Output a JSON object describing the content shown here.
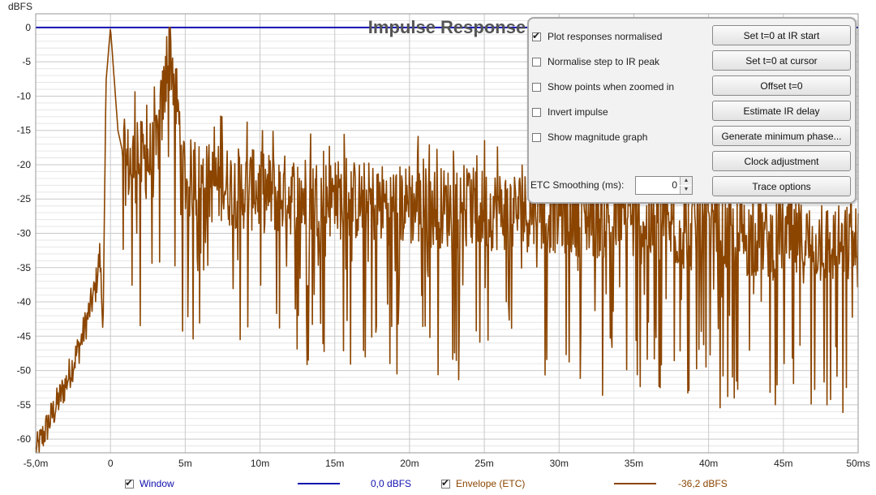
{
  "chart_data": {
    "type": "line",
    "title": "Impulse Response",
    "ylabel": "dBFS",
    "xlabel": "",
    "x_tick_labels": [
      "-5,0m",
      "0",
      "5m",
      "10m",
      "15m",
      "20m",
      "25m",
      "30m",
      "35m",
      "40m",
      "45m",
      "50ms"
    ],
    "y_tick_labels": [
      "0",
      "-5",
      "-10",
      "-15",
      "-20",
      "-25",
      "-30",
      "-35",
      "-40",
      "-45",
      "-50",
      "-55",
      "-60"
    ],
    "xlim_ms": [
      -5,
      50
    ],
    "ylim": [
      -62,
      2
    ],
    "grid": true,
    "series": [
      {
        "name": "Window",
        "color": "#1010b0",
        "x_ms": [
          -5,
          50
        ],
        "y": [
          0,
          0
        ]
      },
      {
        "name": "Envelope (ETC)",
        "color": "#8b4500",
        "keypoints": [
          {
            "x": -5.0,
            "y": -62
          },
          {
            "x": -4.0,
            "y": -57
          },
          {
            "x": -3.0,
            "y": -52
          },
          {
            "x": -2.0,
            "y": -46
          },
          {
            "x": -1.0,
            "y": -38
          },
          {
            "x": -0.7,
            "y": -33
          },
          {
            "x": -0.5,
            "y": -45
          },
          {
            "x": -0.3,
            "y": -8
          },
          {
            "x": 0.0,
            "y": 0
          },
          {
            "x": 0.5,
            "y": -15
          },
          {
            "x": 1.0,
            "y": -20
          },
          {
            "x": 3.0,
            "y": -19
          },
          {
            "x": 4.0,
            "y": -3
          },
          {
            "x": 5.0,
            "y": -22
          },
          {
            "x": 10.0,
            "y": -24
          },
          {
            "x": 15.0,
            "y": -25
          },
          {
            "x": 20.0,
            "y": -26
          },
          {
            "x": 30.0,
            "y": -27
          },
          {
            "x": 40.0,
            "y": -30
          },
          {
            "x": 50.0,
            "y": -32
          }
        ]
      }
    ]
  },
  "legend": {
    "window_label": "Window",
    "window_value": "0,0 dBFS",
    "envelope_label": "Envelope (ETC)",
    "envelope_value": "-36,2 dBFS",
    "window_color": "#1010b0",
    "envelope_color": "#8b4500"
  },
  "panel": {
    "checkboxes": [
      {
        "label": "Plot responses normalised",
        "checked": true
      },
      {
        "label": "Normalise step to IR peak",
        "checked": false
      },
      {
        "label": "Show points when zoomed in",
        "checked": false
      },
      {
        "label": "Invert impulse",
        "checked": false
      },
      {
        "label": "Show magnitude graph",
        "checked": false
      }
    ],
    "buttons": [
      "Set t=0 at IR start",
      "Set t=0 at cursor",
      "Offset t=0",
      "Estimate IR delay",
      "Generate minimum phase...",
      "Clock adjustment",
      "Trace options"
    ],
    "smoothing_label": "ETC Smoothing (ms):",
    "smoothing_value": "0"
  }
}
